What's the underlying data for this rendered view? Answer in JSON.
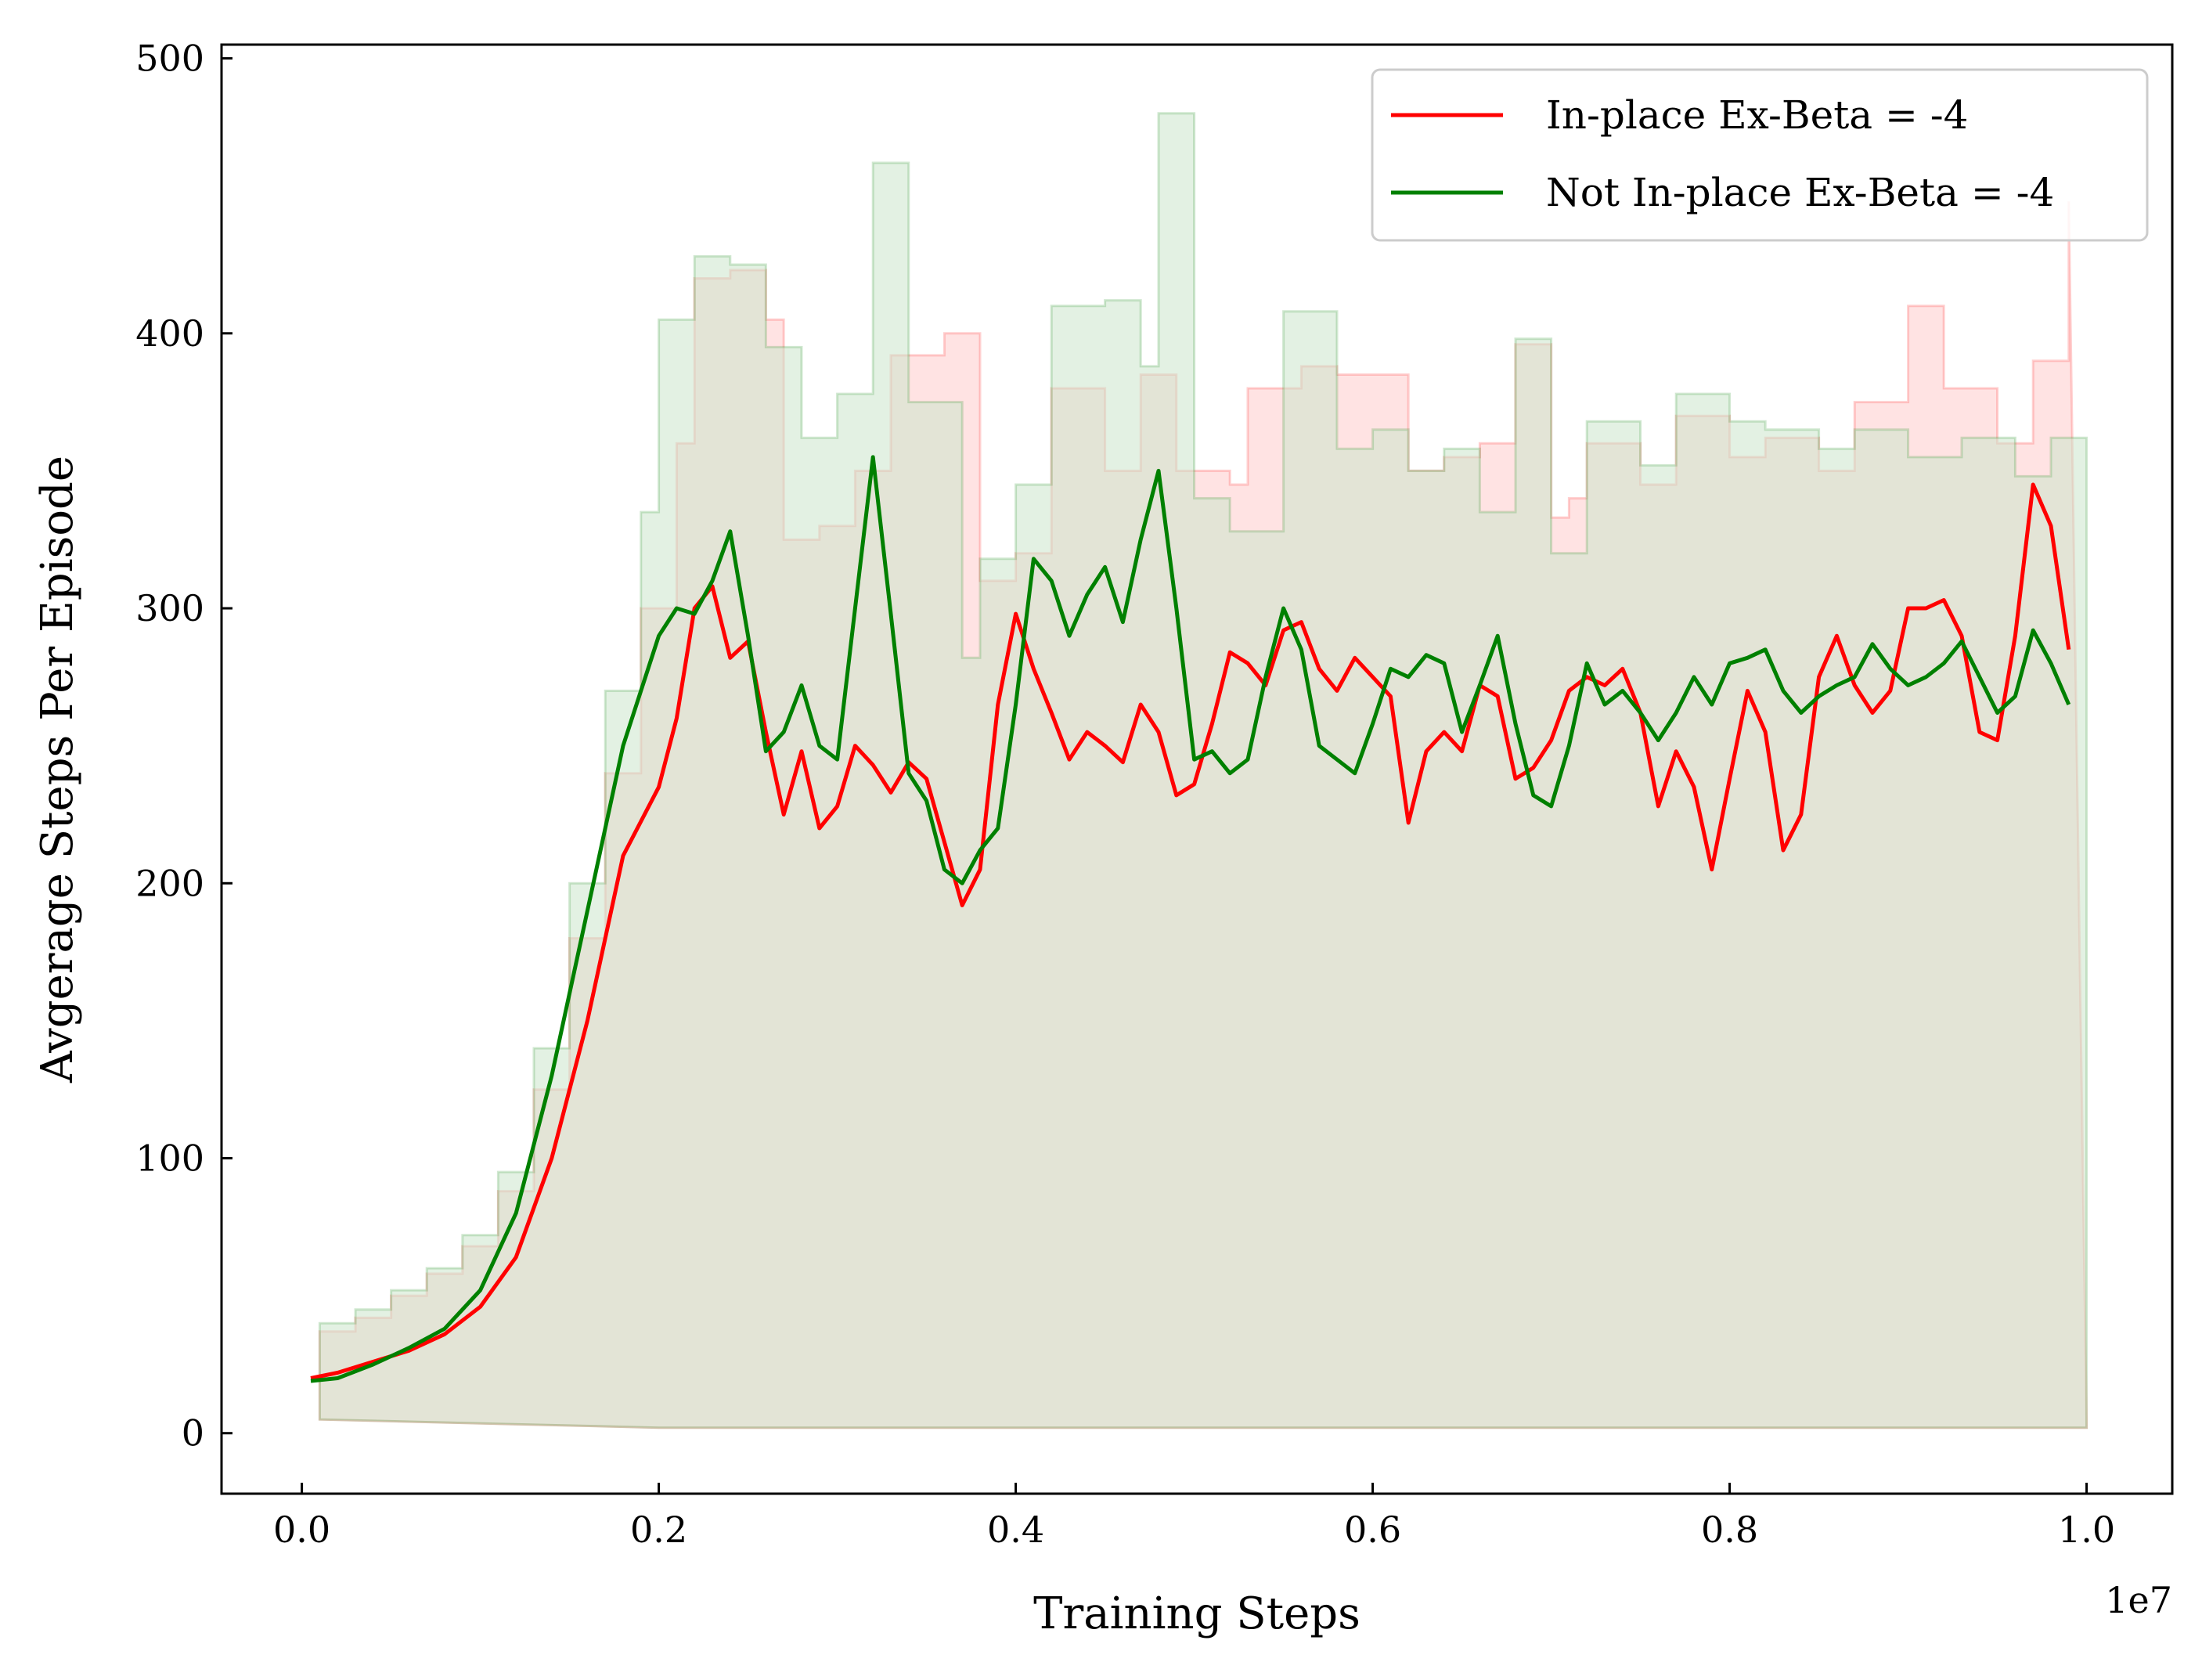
{
  "chart_data": {
    "type": "line",
    "title": "",
    "xlabel": "Training Steps",
    "ylabel": "Avgerage Steps Per Episode",
    "x_offset_label": "1e7",
    "xlim": [
      -0.045,
      1.048
    ],
    "ylim": [
      -22,
      505
    ],
    "x_ticks": [
      0.0,
      0.2,
      0.4,
      0.6,
      0.8,
      1.0
    ],
    "x_tick_labels": [
      "0.0",
      "0.2",
      "0.4",
      "0.6",
      "0.8",
      "1.0"
    ],
    "y_ticks": [
      0,
      100,
      200,
      300,
      400,
      500
    ],
    "y_tick_labels": [
      "0",
      "100",
      "200",
      "300",
      "400",
      "500"
    ],
    "grid": false,
    "legend_position": "top-right",
    "series": [
      {
        "name": "In-place Ex-Beta = -4",
        "color": "#ff0000",
        "band_color": "#ffcccc",
        "points": [
          [
            0.005,
            20
          ],
          [
            0.02,
            22
          ],
          [
            0.04,
            26
          ],
          [
            0.06,
            30
          ],
          [
            0.08,
            36
          ],
          [
            0.1,
            46
          ],
          [
            0.12,
            64
          ],
          [
            0.14,
            100
          ],
          [
            0.16,
            150
          ],
          [
            0.18,
            210
          ],
          [
            0.2,
            235
          ],
          [
            0.21,
            260
          ],
          [
            0.22,
            300
          ],
          [
            0.23,
            308
          ],
          [
            0.24,
            282
          ],
          [
            0.25,
            288
          ],
          [
            0.26,
            255
          ],
          [
            0.27,
            225
          ],
          [
            0.28,
            248
          ],
          [
            0.29,
            220
          ],
          [
            0.3,
            228
          ],
          [
            0.31,
            250
          ],
          [
            0.32,
            243
          ],
          [
            0.33,
            233
          ],
          [
            0.34,
            244
          ],
          [
            0.35,
            238
          ],
          [
            0.36,
            215
          ],
          [
            0.37,
            192
          ],
          [
            0.38,
            205
          ],
          [
            0.39,
            265
          ],
          [
            0.4,
            298
          ],
          [
            0.41,
            278
          ],
          [
            0.42,
            262
          ],
          [
            0.43,
            245
          ],
          [
            0.44,
            255
          ],
          [
            0.45,
            250
          ],
          [
            0.46,
            244
          ],
          [
            0.47,
            265
          ],
          [
            0.48,
            255
          ],
          [
            0.49,
            232
          ],
          [
            0.5,
            236
          ],
          [
            0.51,
            258
          ],
          [
            0.52,
            284
          ],
          [
            0.53,
            280
          ],
          [
            0.54,
            272
          ],
          [
            0.55,
            292
          ],
          [
            0.56,
            295
          ],
          [
            0.57,
            278
          ],
          [
            0.58,
            270
          ],
          [
            0.59,
            282
          ],
          [
            0.6,
            275
          ],
          [
            0.61,
            268
          ],
          [
            0.62,
            222
          ],
          [
            0.63,
            248
          ],
          [
            0.64,
            255
          ],
          [
            0.65,
            248
          ],
          [
            0.66,
            272
          ],
          [
            0.67,
            268
          ],
          [
            0.68,
            238
          ],
          [
            0.69,
            242
          ],
          [
            0.7,
            252
          ],
          [
            0.71,
            270
          ],
          [
            0.72,
            275
          ],
          [
            0.73,
            272
          ],
          [
            0.74,
            278
          ],
          [
            0.75,
            262
          ],
          [
            0.76,
            228
          ],
          [
            0.77,
            248
          ],
          [
            0.78,
            235
          ],
          [
            0.79,
            205
          ],
          [
            0.8,
            238
          ],
          [
            0.81,
            270
          ],
          [
            0.82,
            255
          ],
          [
            0.83,
            212
          ],
          [
            0.84,
            225
          ],
          [
            0.85,
            275
          ],
          [
            0.86,
            290
          ],
          [
            0.87,
            272
          ],
          [
            0.88,
            262
          ],
          [
            0.89,
            270
          ],
          [
            0.9,
            300
          ],
          [
            0.91,
            300
          ],
          [
            0.92,
            303
          ],
          [
            0.93,
            290
          ],
          [
            0.94,
            255
          ],
          [
            0.95,
            252
          ],
          [
            0.96,
            290
          ],
          [
            0.97,
            345
          ],
          [
            0.98,
            330
          ],
          [
            0.99,
            285
          ]
        ],
        "band_upper": [
          [
            0.01,
            37
          ],
          [
            0.03,
            42
          ],
          [
            0.05,
            50
          ],
          [
            0.07,
            58
          ],
          [
            0.09,
            68
          ],
          [
            0.11,
            88
          ],
          [
            0.13,
            125
          ],
          [
            0.15,
            180
          ],
          [
            0.17,
            240
          ],
          [
            0.19,
            300
          ],
          [
            0.21,
            360
          ],
          [
            0.22,
            420
          ],
          [
            0.24,
            423
          ],
          [
            0.26,
            405
          ],
          [
            0.27,
            325
          ],
          [
            0.29,
            330
          ],
          [
            0.31,
            350
          ],
          [
            0.33,
            392
          ],
          [
            0.36,
            400
          ],
          [
            0.38,
            310
          ],
          [
            0.4,
            320
          ],
          [
            0.42,
            380
          ],
          [
            0.45,
            350
          ],
          [
            0.47,
            385
          ],
          [
            0.49,
            350
          ],
          [
            0.52,
            345
          ],
          [
            0.53,
            380
          ],
          [
            0.56,
            388
          ],
          [
            0.58,
            385
          ],
          [
            0.62,
            350
          ],
          [
            0.64,
            355
          ],
          [
            0.66,
            360
          ],
          [
            0.68,
            396
          ],
          [
            0.7,
            333
          ],
          [
            0.71,
            340
          ],
          [
            0.72,
            360
          ],
          [
            0.75,
            345
          ],
          [
            0.77,
            370
          ],
          [
            0.8,
            355
          ],
          [
            0.82,
            362
          ],
          [
            0.85,
            350
          ],
          [
            0.87,
            375
          ],
          [
            0.9,
            410
          ],
          [
            0.92,
            380
          ],
          [
            0.95,
            360
          ],
          [
            0.97,
            390
          ],
          [
            0.99,
            448
          ]
        ],
        "band_lower": [
          [
            0.01,
            5
          ],
          [
            0.2,
            2
          ],
          [
            1.0,
            2
          ]
        ]
      },
      {
        "name": "Not In-place Ex-Beta = -4",
        "color": "#008000",
        "band_color": "#cce6cc",
        "points": [
          [
            0.005,
            19
          ],
          [
            0.02,
            20
          ],
          [
            0.04,
            25
          ],
          [
            0.06,
            31
          ],
          [
            0.08,
            38
          ],
          [
            0.1,
            52
          ],
          [
            0.12,
            80
          ],
          [
            0.14,
            130
          ],
          [
            0.16,
            190
          ],
          [
            0.18,
            250
          ],
          [
            0.2,
            290
          ],
          [
            0.21,
            300
          ],
          [
            0.22,
            298
          ],
          [
            0.23,
            310
          ],
          [
            0.24,
            328
          ],
          [
            0.25,
            290
          ],
          [
            0.26,
            248
          ],
          [
            0.27,
            255
          ],
          [
            0.28,
            272
          ],
          [
            0.29,
            250
          ],
          [
            0.3,
            245
          ],
          [
            0.31,
            300
          ],
          [
            0.32,
            355
          ],
          [
            0.33,
            298
          ],
          [
            0.34,
            240
          ],
          [
            0.35,
            230
          ],
          [
            0.36,
            205
          ],
          [
            0.37,
            200
          ],
          [
            0.38,
            212
          ],
          [
            0.39,
            220
          ],
          [
            0.4,
            265
          ],
          [
            0.41,
            318
          ],
          [
            0.42,
            310
          ],
          [
            0.43,
            290
          ],
          [
            0.44,
            305
          ],
          [
            0.45,
            315
          ],
          [
            0.46,
            295
          ],
          [
            0.47,
            325
          ],
          [
            0.48,
            350
          ],
          [
            0.49,
            300
          ],
          [
            0.5,
            245
          ],
          [
            0.51,
            248
          ],
          [
            0.52,
            240
          ],
          [
            0.53,
            245
          ],
          [
            0.54,
            275
          ],
          [
            0.55,
            300
          ],
          [
            0.56,
            285
          ],
          [
            0.57,
            250
          ],
          [
            0.58,
            245
          ],
          [
            0.59,
            240
          ],
          [
            0.6,
            258
          ],
          [
            0.61,
            278
          ],
          [
            0.62,
            275
          ],
          [
            0.63,
            283
          ],
          [
            0.64,
            280
          ],
          [
            0.65,
            255
          ],
          [
            0.66,
            272
          ],
          [
            0.67,
            290
          ],
          [
            0.68,
            258
          ],
          [
            0.69,
            232
          ],
          [
            0.7,
            228
          ],
          [
            0.71,
            250
          ],
          [
            0.72,
            280
          ],
          [
            0.73,
            265
          ],
          [
            0.74,
            270
          ],
          [
            0.75,
            262
          ],
          [
            0.76,
            252
          ],
          [
            0.77,
            262
          ],
          [
            0.78,
            275
          ],
          [
            0.79,
            265
          ],
          [
            0.8,
            280
          ],
          [
            0.81,
            282
          ],
          [
            0.82,
            285
          ],
          [
            0.83,
            270
          ],
          [
            0.84,
            262
          ],
          [
            0.85,
            268
          ],
          [
            0.86,
            272
          ],
          [
            0.87,
            275
          ],
          [
            0.88,
            287
          ],
          [
            0.89,
            278
          ],
          [
            0.9,
            272
          ],
          [
            0.91,
            275
          ],
          [
            0.92,
            280
          ],
          [
            0.93,
            288
          ],
          [
            0.94,
            275
          ],
          [
            0.95,
            262
          ],
          [
            0.96,
            268
          ],
          [
            0.97,
            292
          ],
          [
            0.98,
            280
          ],
          [
            0.99,
            265
          ]
        ],
        "band_upper": [
          [
            0.01,
            40
          ],
          [
            0.03,
            45
          ],
          [
            0.05,
            52
          ],
          [
            0.07,
            60
          ],
          [
            0.09,
            72
          ],
          [
            0.11,
            95
          ],
          [
            0.13,
            140
          ],
          [
            0.15,
            200
          ],
          [
            0.17,
            270
          ],
          [
            0.19,
            335
          ],
          [
            0.2,
            405
          ],
          [
            0.22,
            428
          ],
          [
            0.24,
            425
          ],
          [
            0.26,
            395
          ],
          [
            0.28,
            362
          ],
          [
            0.3,
            378
          ],
          [
            0.32,
            462
          ],
          [
            0.34,
            375
          ],
          [
            0.37,
            282
          ],
          [
            0.38,
            318
          ],
          [
            0.4,
            345
          ],
          [
            0.42,
            410
          ],
          [
            0.45,
            412
          ],
          [
            0.47,
            388
          ],
          [
            0.48,
            480
          ],
          [
            0.5,
            340
          ],
          [
            0.52,
            328
          ],
          [
            0.55,
            408
          ],
          [
            0.58,
            358
          ],
          [
            0.6,
            365
          ],
          [
            0.62,
            350
          ],
          [
            0.64,
            358
          ],
          [
            0.66,
            335
          ],
          [
            0.68,
            398
          ],
          [
            0.7,
            320
          ],
          [
            0.72,
            368
          ],
          [
            0.75,
            352
          ],
          [
            0.77,
            378
          ],
          [
            0.8,
            368
          ],
          [
            0.82,
            365
          ],
          [
            0.85,
            358
          ],
          [
            0.87,
            365
          ],
          [
            0.9,
            355
          ],
          [
            0.93,
            362
          ],
          [
            0.96,
            348
          ],
          [
            0.98,
            362
          ],
          [
            1.0,
            362
          ]
        ],
        "band_lower": [
          [
            0.01,
            5
          ],
          [
            0.2,
            2
          ],
          [
            1.0,
            2
          ]
        ]
      }
    ]
  }
}
